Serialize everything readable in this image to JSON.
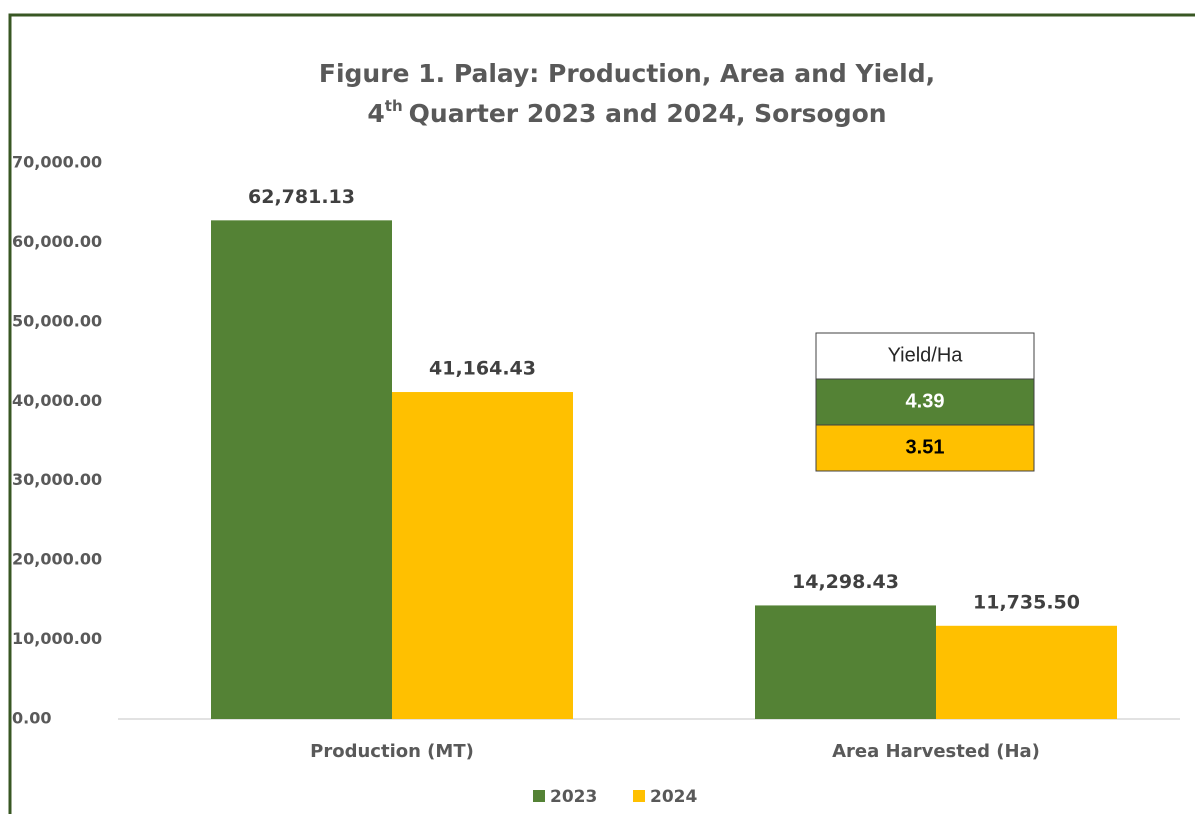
{
  "chart_data": {
    "type": "bar",
    "title": "Figure 1. Palay: Production, Area and Yield,",
    "subtitle": {
      "ordinal": "4",
      "suffix": "th",
      "rest": "Quarter 2023 and 2024, Sorsogon"
    },
    "categories": [
      "Production (MT)",
      "Area Harvested (Ha)"
    ],
    "series": [
      {
        "name": "2023",
        "color": "#548235",
        "values": [
          62781.13,
          14298.43
        ],
        "value_labels": [
          "62,781.13",
          "14,298.43"
        ]
      },
      {
        "name": "2024",
        "color": "#ffc000",
        "values": [
          41164.43,
          11735.5
        ],
        "value_labels": [
          "41,164.43",
          "11,735.50"
        ]
      }
    ],
    "ylim": [
      0,
      70000
    ],
    "yticks": [
      {
        "value": 0,
        "label": "0.00"
      },
      {
        "value": 10000,
        "label": "10,000.00"
      },
      {
        "value": 20000,
        "label": "20,000.00"
      },
      {
        "value": 30000,
        "label": "30,000.00"
      },
      {
        "value": 40000,
        "label": "40,000.00"
      },
      {
        "value": 50000,
        "label": "50,000.00"
      },
      {
        "value": 60000,
        "label": "60,000.00"
      },
      {
        "value": 70000,
        "label": "70,000.00"
      }
    ],
    "legend": "bottom",
    "yield_table": {
      "title": "Yield/Ha",
      "values": [
        4.39,
        3.51
      ]
    }
  }
}
